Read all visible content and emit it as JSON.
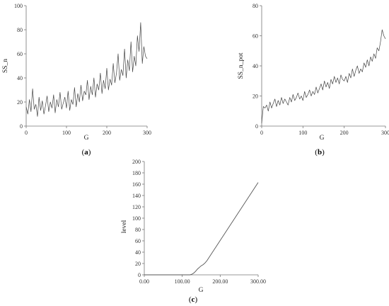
{
  "chart_data": [
    {
      "id": "a",
      "type": "line",
      "panel_label": "a",
      "xlabel": "G",
      "ylabel": "SS_n",
      "xlim": [
        0,
        300
      ],
      "ylim": [
        0,
        100
      ],
      "xticks": [
        "0",
        "100",
        "200",
        "300"
      ],
      "yticks": [
        "0",
        "20",
        "40",
        "60",
        "80",
        "100"
      ],
      "grid": false,
      "series": [
        {
          "x": [
            0,
            4,
            8,
            12,
            16,
            20,
            24,
            28,
            32,
            36,
            40,
            44,
            48,
            52,
            56,
            60,
            64,
            68,
            72,
            76,
            80,
            84,
            88,
            92,
            96,
            100,
            104,
            108,
            112,
            116,
            120,
            124,
            128,
            132,
            136,
            140,
            144,
            148,
            152,
            156,
            160,
            164,
            168,
            172,
            176,
            180,
            184,
            188,
            192,
            196,
            200,
            204,
            208,
            212,
            216,
            220,
            224,
            228,
            232,
            236,
            240,
            244,
            248,
            252,
            256,
            260,
            264,
            268,
            272,
            276,
            280,
            284,
            288,
            292,
            296,
            300
          ],
          "values": [
            16,
            10,
            22,
            12,
            31,
            14,
            18,
            8,
            24,
            13,
            21,
            10,
            17,
            25,
            12,
            20,
            15,
            26,
            11,
            22,
            16,
            28,
            14,
            19,
            24,
            15,
            29,
            13,
            22,
            18,
            32,
            16,
            27,
            20,
            34,
            21,
            29,
            26,
            38,
            22,
            33,
            26,
            40,
            24,
            35,
            30,
            44,
            27,
            38,
            31,
            48,
            30,
            39,
            34,
            52,
            36,
            44,
            60,
            38,
            47,
            42,
            64,
            40,
            55,
            46,
            70,
            45,
            58,
            50,
            75,
            62,
            86,
            52,
            66,
            58,
            56
          ]
        }
      ]
    },
    {
      "id": "b",
      "type": "line",
      "panel_label": "b",
      "xlabel": "G",
      "ylabel": "SS_n_pot",
      "xlim": [
        0,
        300
      ],
      "ylim": [
        0,
        80
      ],
      "xticks": [
        "0",
        "100",
        "200",
        "300"
      ],
      "yticks": [
        "0",
        "20",
        "40",
        "60",
        "80"
      ],
      "grid": false,
      "series": [
        {
          "x": [
            0,
            4,
            8,
            12,
            16,
            20,
            24,
            28,
            32,
            36,
            40,
            44,
            48,
            52,
            56,
            60,
            64,
            68,
            72,
            76,
            80,
            84,
            88,
            92,
            96,
            100,
            104,
            108,
            112,
            116,
            120,
            124,
            128,
            132,
            136,
            140,
            144,
            148,
            152,
            156,
            160,
            164,
            168,
            172,
            176,
            180,
            184,
            188,
            192,
            196,
            200,
            204,
            208,
            212,
            216,
            220,
            224,
            228,
            232,
            236,
            240,
            244,
            248,
            252,
            256,
            260,
            264,
            268,
            272,
            276,
            280,
            284,
            288,
            292,
            296,
            300
          ],
          "values": [
            2,
            13,
            12,
            14,
            10,
            16,
            12,
            15,
            18,
            13,
            17,
            14,
            19,
            15,
            18,
            16,
            14,
            19,
            16,
            21,
            17,
            19,
            22,
            18,
            20,
            17,
            23,
            19,
            21,
            24,
            20,
            23,
            21,
            26,
            22,
            25,
            28,
            24,
            30,
            26,
            29,
            25,
            31,
            28,
            33,
            29,
            32,
            28,
            34,
            31,
            30,
            33,
            29,
            35,
            32,
            38,
            33,
            37,
            40,
            35,
            38,
            36,
            42,
            39,
            44,
            40,
            46,
            43,
            48,
            45,
            52,
            50,
            56,
            64,
            60,
            58
          ]
        }
      ]
    },
    {
      "id": "c",
      "type": "line",
      "panel_label": "c",
      "xlabel": "G",
      "ylabel": "level",
      "xlim": [
        0,
        300
      ],
      "ylim": [
        0,
        200
      ],
      "xticks": [
        "0.00",
        "100.00",
        "200.00",
        "300.00"
      ],
      "yticks": [
        "0",
        "20",
        "40",
        "60",
        "80",
        "100",
        "120",
        "140",
        "160",
        "180",
        "200"
      ],
      "grid": false,
      "series": [
        {
          "x": [
            0,
            120,
            125,
            130,
            135,
            140,
            145,
            150,
            155,
            160,
            165,
            300
          ],
          "values": [
            0,
            0,
            1,
            3,
            6,
            10,
            13,
            16,
            18,
            21,
            25,
            163
          ]
        }
      ]
    }
  ]
}
